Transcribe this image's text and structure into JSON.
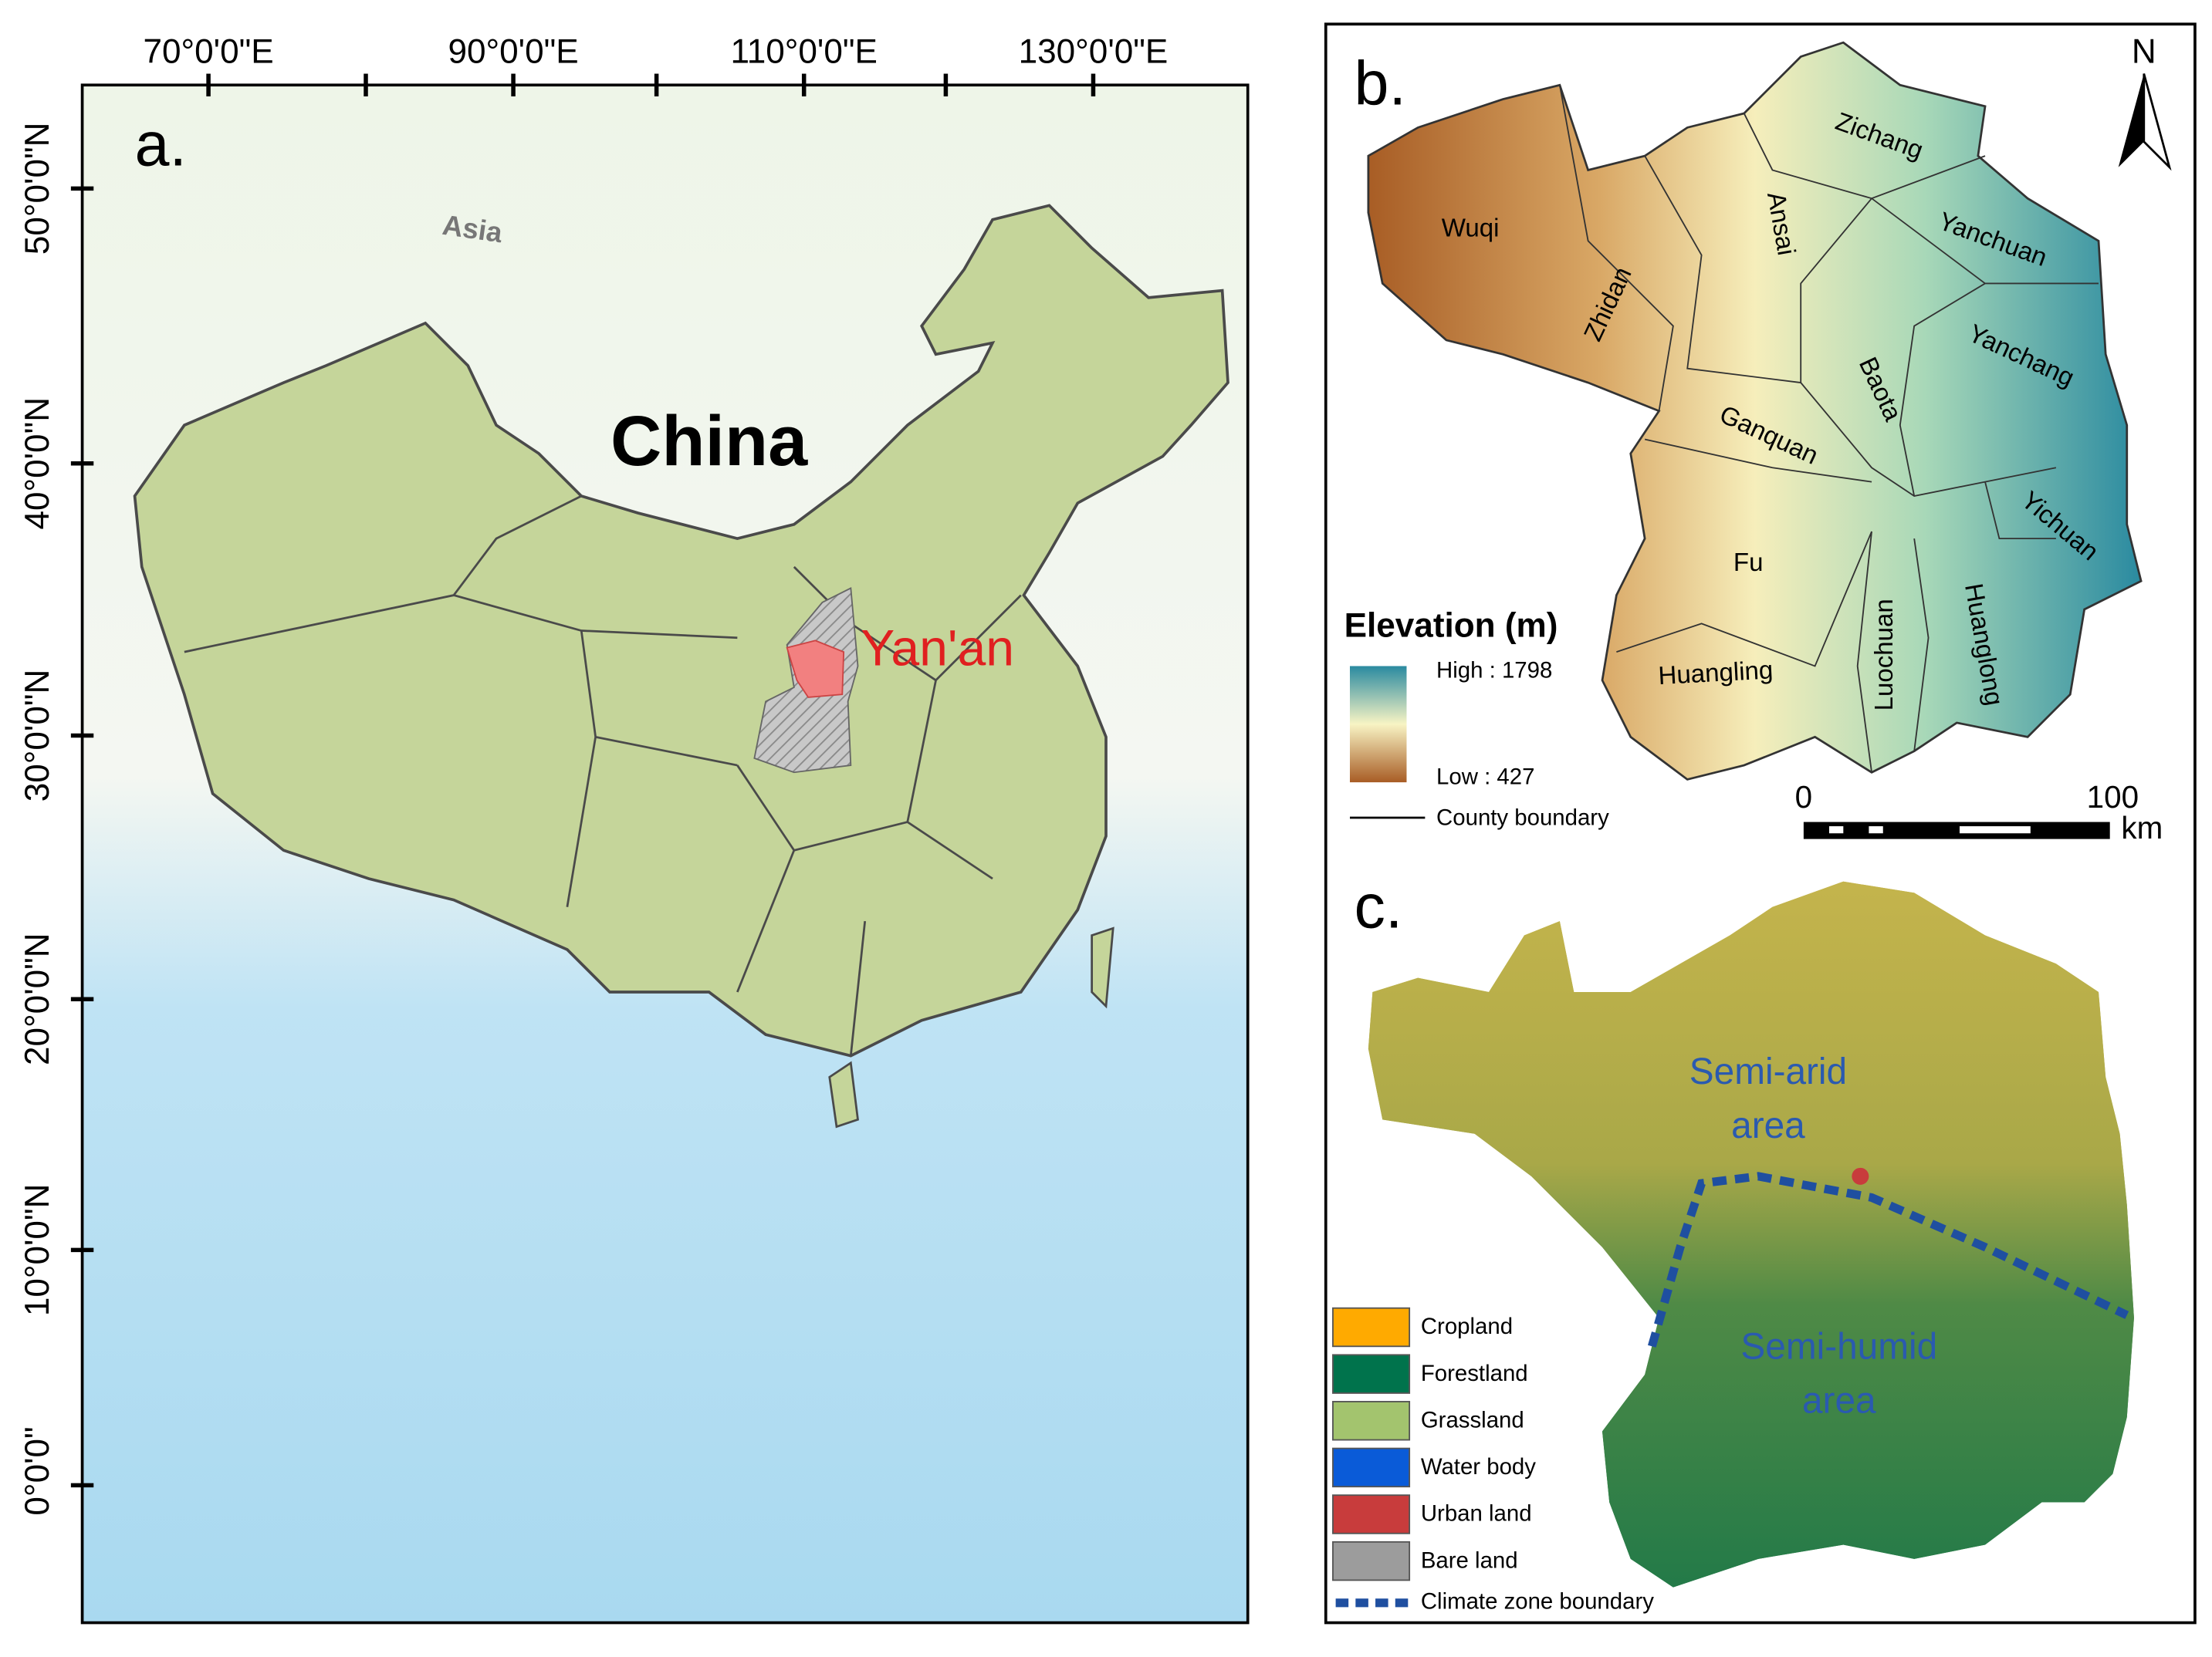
{
  "panel_a": {
    "label": "a.",
    "top_ticks": [
      "70°0'0\"E",
      "90°0'0\"E",
      "110°0'0\"E",
      "130°0'0\"E"
    ],
    "left_ticks": [
      "50°0'0\"N",
      "40°0'0\"N",
      "30°0'0\"N",
      "20°0'0\"N",
      "10°0'0\"N",
      "0°0'0\""
    ],
    "continent": "Asia",
    "country": "China",
    "city": "Yan'an"
  },
  "panel_b": {
    "label": "b.",
    "north": "N",
    "counties": [
      "Wuqi",
      "Zhidan",
      "Zichang",
      "Ansai",
      "Yanchuan",
      "Yanchang",
      "Baota",
      "Ganquan",
      "Yichuan",
      "Fu",
      "Luochuan",
      "Huanglong",
      "Huangling"
    ],
    "legend": {
      "title": "Elevation (m)",
      "high": "High : 1798",
      "low": "Low : 427",
      "boundary": "County boundary"
    },
    "scale": {
      "start": "0",
      "end": "100",
      "unit": "km"
    }
  },
  "panel_c": {
    "label": "c.",
    "zones": [
      [
        "Semi-arid",
        "area"
      ],
      [
        "Semi-humid",
        "area"
      ]
    ],
    "legend": [
      {
        "name": "Cropland",
        "color": "#ffaa00"
      },
      {
        "name": "Forestland",
        "color": "#00734c"
      },
      {
        "name": "Grassland",
        "color": "#a3c46e"
      },
      {
        "name": "Water body",
        "color": "#0a5bd8"
      },
      {
        "name": "Urban land",
        "color": "#c83c3c"
      },
      {
        "name": "Bare land",
        "color": "#9c9c9c"
      }
    ],
    "boundary": {
      "name": "Climate zone boundary",
      "color": "#1f4fa0"
    }
  }
}
